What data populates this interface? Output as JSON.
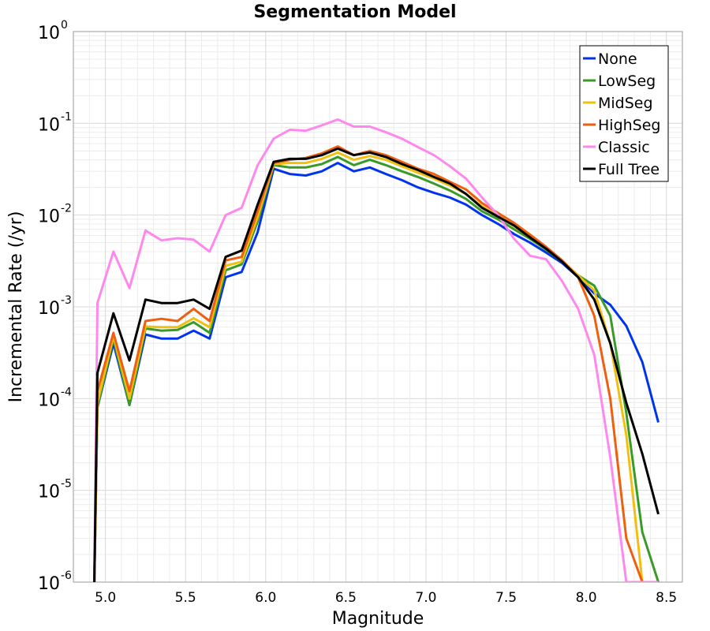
{
  "chart_data": {
    "type": "line",
    "title": "Segmentation Model",
    "xlabel": "Magnitude",
    "ylabel": "Incremental Rate (/yr)",
    "xlim": [
      4.8,
      8.6
    ],
    "ylim": [
      1e-06,
      1
    ],
    "yscale": "log",
    "grid": true,
    "legend_position": "top-right",
    "xticks": [
      "5.0",
      "5.5",
      "6.0",
      "6.5",
      "7.0",
      "7.5",
      "8.0",
      "8.5"
    ],
    "ytick_bases": [
      "10",
      "10",
      "10",
      "10",
      "10",
      "10",
      "10"
    ],
    "ytick_exponents": [
      "-6",
      "-5",
      "-4",
      "-3",
      "-2",
      "-1",
      "0"
    ],
    "x": [
      4.95,
      5.05,
      5.15,
      5.25,
      5.35,
      5.45,
      5.55,
      5.65,
      5.75,
      5.85,
      5.95,
      6.05,
      6.15,
      6.25,
      6.35,
      6.45,
      6.55,
      6.65,
      6.75,
      6.85,
      6.95,
      7.05,
      7.15,
      7.25,
      7.35,
      7.45,
      7.55,
      7.65,
      7.75,
      7.85,
      7.95,
      8.05,
      8.15,
      8.25,
      8.35,
      8.45
    ],
    "series": [
      {
        "name": "None",
        "color": "#0033ee",
        "values": [
          8e-05,
          0.0004,
          8.5e-05,
          0.0005,
          0.00045,
          0.00045,
          0.00055,
          0.00045,
          0.0021,
          0.0024,
          0.0065,
          0.032,
          0.028,
          0.027,
          0.03,
          0.037,
          0.03,
          0.033,
          0.028,
          0.024,
          0.02,
          0.0175,
          0.0155,
          0.013,
          0.01,
          0.008,
          0.0062,
          0.005,
          0.0039,
          0.003,
          0.0021,
          0.0014,
          0.00105,
          0.00062,
          0.00025,
          5.5e-05
        ]
      },
      {
        "name": "LowSeg",
        "color": "#3a9a28",
        "values": [
          8e-05,
          0.00045,
          8.5e-05,
          0.00058,
          0.00055,
          0.00056,
          0.00068,
          0.00052,
          0.0025,
          0.0029,
          0.0085,
          0.035,
          0.033,
          0.033,
          0.036,
          0.043,
          0.035,
          0.04,
          0.035,
          0.03,
          0.026,
          0.022,
          0.0185,
          0.015,
          0.011,
          0.009,
          0.007,
          0.0055,
          0.0042,
          0.0031,
          0.0022,
          0.0017,
          0.0008,
          7e-05,
          3.5e-06,
          1e-06
        ]
      },
      {
        "name": "MidSeg",
        "color": "#f0c010",
        "values": [
          9e-05,
          0.00048,
          0.0001,
          0.00061,
          0.0006,
          0.0006,
          0.00075,
          0.0006,
          0.0028,
          0.0031,
          0.0095,
          0.036,
          0.037,
          0.037,
          0.041,
          0.048,
          0.04,
          0.044,
          0.04,
          0.034,
          0.029,
          0.025,
          0.021,
          0.017,
          0.0125,
          0.0098,
          0.0076,
          0.0058,
          0.0044,
          0.0032,
          0.0022,
          0.0015,
          0.0004,
          4e-05,
          1e-06,
          1e-06
        ]
      },
      {
        "name": "HighSeg",
        "color": "#ee6010",
        "values": [
          0.00012,
          0.00052,
          0.00012,
          0.0007,
          0.00074,
          0.0007,
          0.00095,
          0.0007,
          0.0032,
          0.0035,
          0.011,
          0.037,
          0.04,
          0.042,
          0.047,
          0.056,
          0.045,
          0.05,
          0.045,
          0.038,
          0.032,
          0.028,
          0.023,
          0.019,
          0.0135,
          0.0105,
          0.0082,
          0.0061,
          0.0045,
          0.0032,
          0.0021,
          0.0008,
          0.0001,
          3e-06,
          1e-06,
          1e-06
        ]
      },
      {
        "name": "Classic",
        "color": "#ff88ee",
        "values": [
          0.0011,
          0.004,
          0.0016,
          0.0068,
          0.0053,
          0.0056,
          0.0054,
          0.004,
          0.01,
          0.012,
          0.035,
          0.068,
          0.085,
          0.083,
          0.095,
          0.11,
          0.092,
          0.092,
          0.08,
          0.068,
          0.055,
          0.045,
          0.034,
          0.025,
          0.0155,
          0.01,
          0.0055,
          0.0036,
          0.0033,
          0.0019,
          0.00095,
          0.0003,
          2.3e-05,
          1e-06,
          1e-06,
          1e-06
        ]
      },
      {
        "name": "Full Tree",
        "color": "#000000",
        "values": [
          0.00019,
          0.00085,
          0.00026,
          0.0012,
          0.0011,
          0.0011,
          0.0012,
          0.00095,
          0.0035,
          0.0041,
          0.013,
          0.038,
          0.041,
          0.041,
          0.045,
          0.053,
          0.045,
          0.048,
          0.043,
          0.036,
          0.031,
          0.026,
          0.022,
          0.017,
          0.012,
          0.0096,
          0.0077,
          0.0057,
          0.0043,
          0.0031,
          0.0021,
          0.0012,
          0.0004,
          9e-05,
          2.5e-05,
          5.5e-06
        ]
      }
    ]
  }
}
